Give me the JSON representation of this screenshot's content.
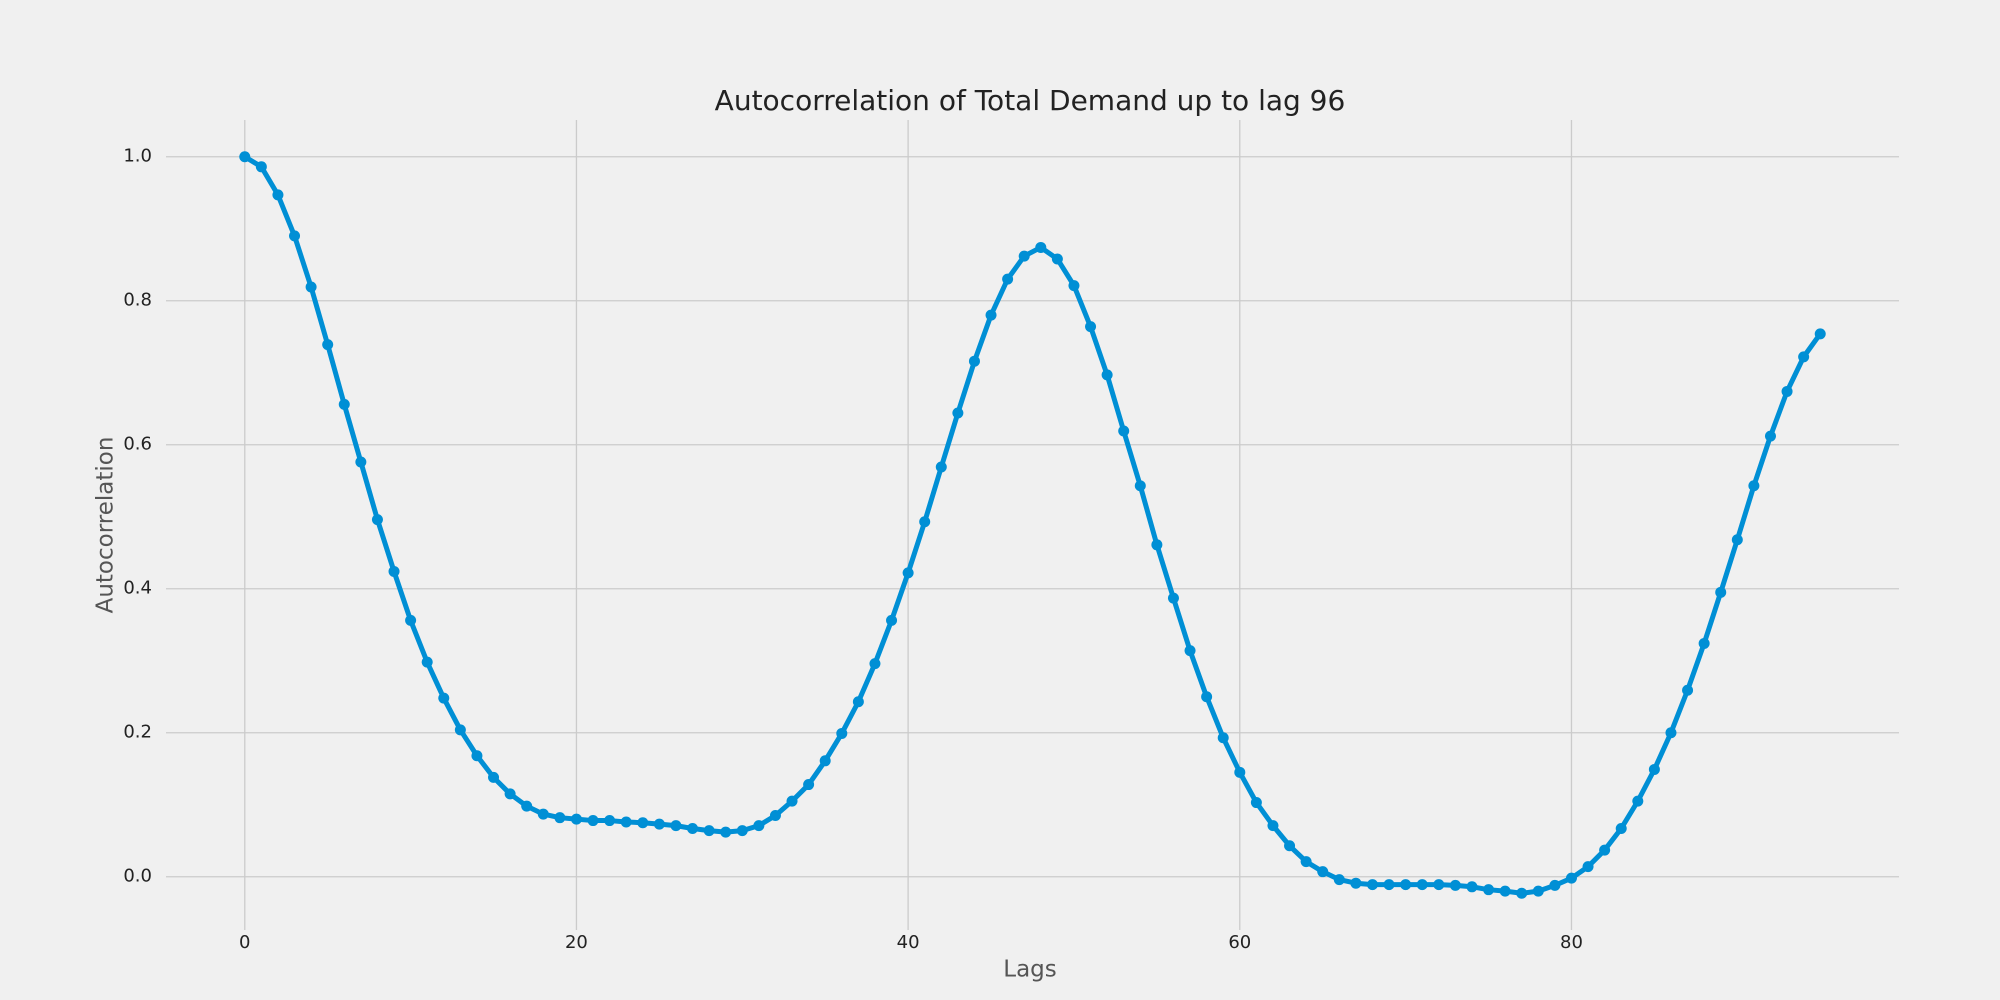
{
  "chart_data": {
    "type": "line",
    "title": "Autocorrelation of Total Demand up to lag 96",
    "x_label": "Lags",
    "y_label": "Autocorrelation",
    "x": [
      0,
      1,
      2,
      3,
      4,
      5,
      6,
      7,
      8,
      9,
      10,
      11,
      12,
      13,
      14,
      15,
      16,
      17,
      18,
      19,
      20,
      21,
      22,
      23,
      24,
      25,
      26,
      27,
      28,
      29,
      30,
      31,
      32,
      33,
      34,
      35,
      36,
      37,
      38,
      39,
      40,
      41,
      42,
      43,
      44,
      45,
      46,
      47,
      48,
      49,
      50,
      51,
      52,
      53,
      54,
      55,
      56,
      57,
      58,
      59,
      60,
      61,
      62,
      63,
      64,
      65,
      66,
      67,
      68,
      69,
      70,
      71,
      72,
      73,
      74,
      75,
      76,
      77,
      78,
      79,
      80,
      81,
      82,
      83,
      84,
      85,
      86,
      87,
      88,
      89,
      90,
      91,
      92,
      93,
      94,
      95
    ],
    "series": [
      {
        "color": "#008fd5",
        "values": [
          1.0,
          0.986,
          0.947,
          0.89,
          0.819,
          0.739,
          0.656,
          0.576,
          0.496,
          0.424,
          0.356,
          0.298,
          0.248,
          0.204,
          0.168,
          0.138,
          0.115,
          0.098,
          0.087,
          0.082,
          0.08,
          0.078,
          0.078,
          0.076,
          0.075,
          0.073,
          0.071,
          0.067,
          0.064,
          0.062,
          0.064,
          0.071,
          0.085,
          0.105,
          0.128,
          0.161,
          0.199,
          0.243,
          0.296,
          0.356,
          0.422,
          0.493,
          0.569,
          0.644,
          0.716,
          0.78,
          0.83,
          0.862,
          0.874,
          0.858,
          0.821,
          0.764,
          0.697,
          0.619,
          0.543,
          0.461,
          0.387,
          0.314,
          0.25,
          0.193,
          0.145,
          0.103,
          0.071,
          0.043,
          0.021,
          0.007,
          -0.004,
          -0.009,
          -0.011,
          -0.011,
          -0.011,
          -0.011,
          -0.011,
          -0.012,
          -0.014,
          -0.018,
          -0.02,
          -0.023,
          -0.02,
          -0.012,
          -0.002,
          0.014,
          0.037,
          0.067,
          0.105,
          0.149,
          0.2,
          0.259,
          0.324,
          0.395,
          0.468,
          0.543,
          0.612,
          0.674,
          0.722,
          0.754
        ]
      }
    ],
    "xlim": [
      -4.75,
      99.75
    ],
    "ylim": [
      -0.074,
      1.051
    ],
    "xticks": [
      0,
      20,
      40,
      60,
      80
    ],
    "yticks": [
      {
        "value": 0,
        "label": "0.0"
      },
      {
        "value": 0.2,
        "label": "0.2"
      },
      {
        "value": 0.4,
        "label": "0.4"
      },
      {
        "value": 0.6,
        "label": "0.6"
      },
      {
        "value": 0.8,
        "label": "0.8"
      },
      {
        "value": 1,
        "label": "1.0"
      }
    ],
    "grid": true
  }
}
